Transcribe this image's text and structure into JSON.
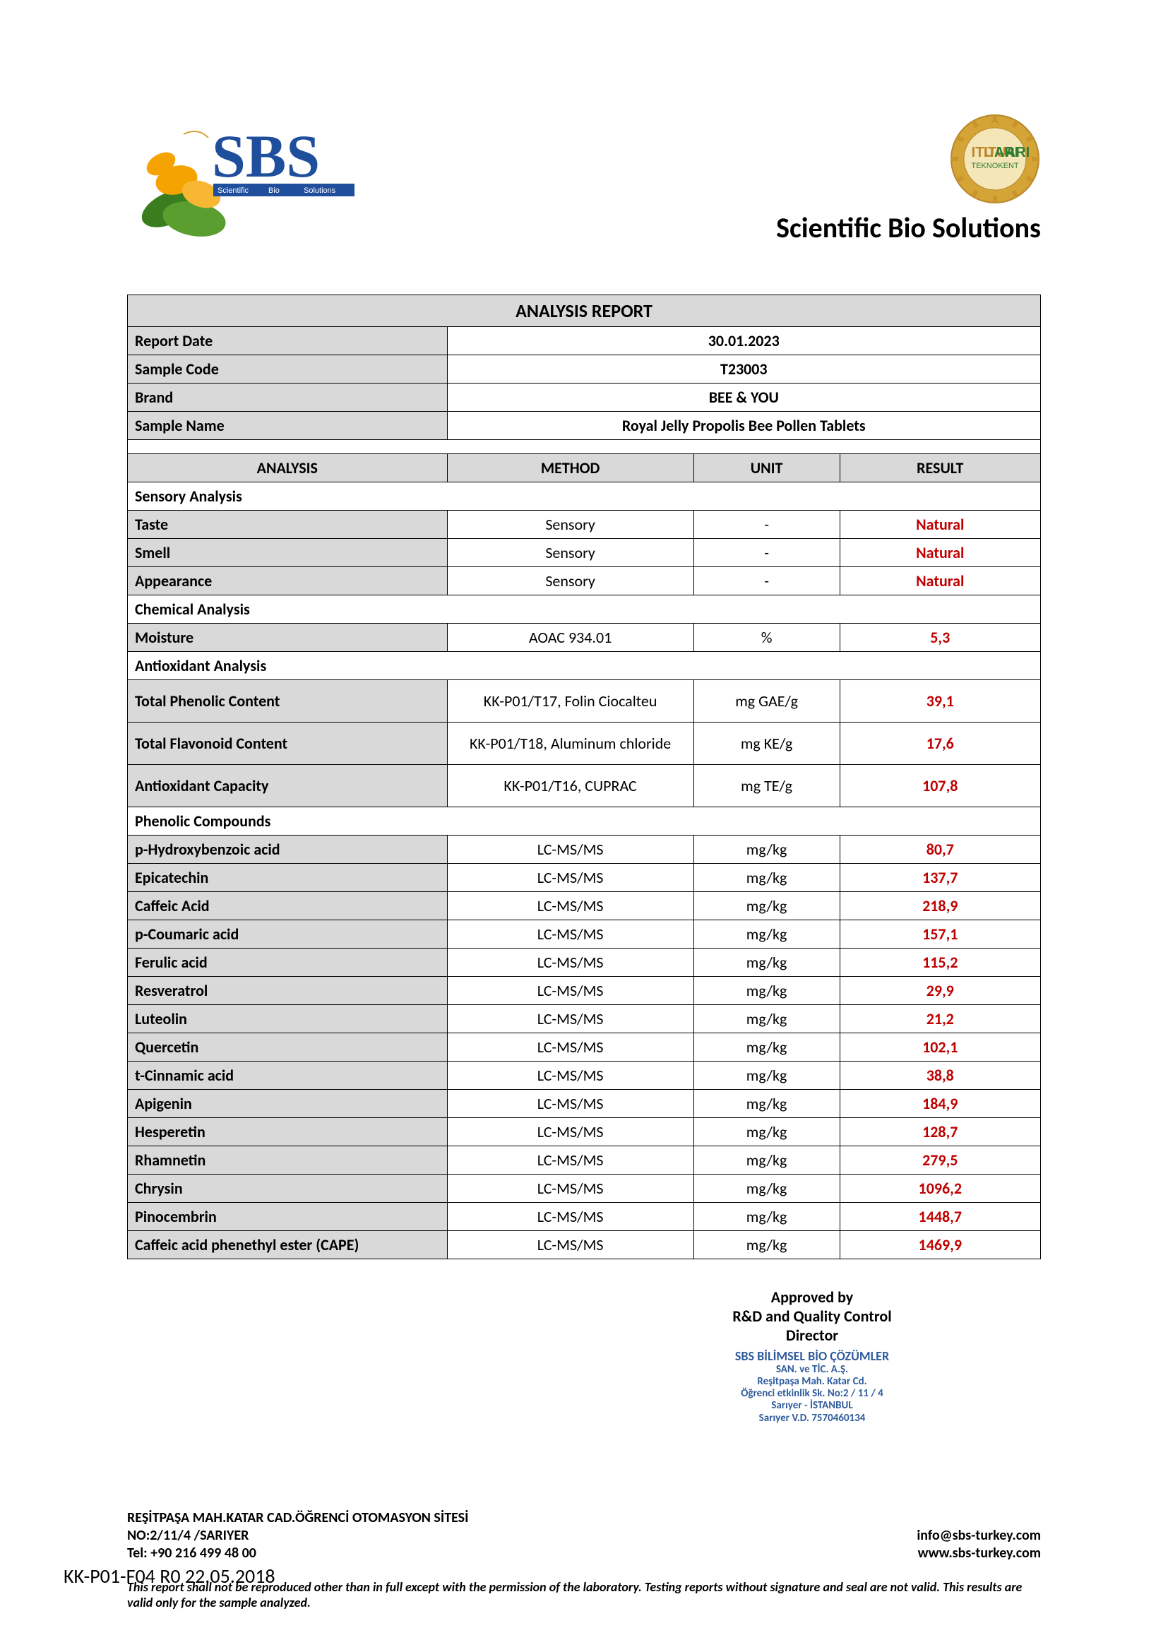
{
  "company_title": "Scientific Bio Solutions",
  "seal_text_top": "ITUARI",
  "seal_text_bottom": "TEKNOKENT",
  "logo_text": "SBS",
  "logo_subtext": "Scientific    Bio    Solutions",
  "report_title": "ANALYSIS REPORT",
  "info": [
    {
      "label": "Report Date",
      "value": "30.01.2023"
    },
    {
      "label": "Sample Code",
      "value": "T23003"
    },
    {
      "label": "Brand",
      "value": "BEE & YOU"
    },
    {
      "label": "Sample Name",
      "value": "Royal Jelly Propolis Bee Pollen Tablets"
    }
  ],
  "columns": {
    "analysis": "ANALYSIS",
    "method": "METHOD",
    "unit": "UNIT",
    "result": "RESULT"
  },
  "sections": [
    {
      "title": "Sensory Analysis",
      "rows": [
        {
          "analysis": "Taste",
          "method": "Sensory",
          "unit": "-",
          "result": "Natural"
        },
        {
          "analysis": "Smell",
          "method": "Sensory",
          "unit": "-",
          "result": "Natural"
        },
        {
          "analysis": "Appearance",
          "method": "Sensory",
          "unit": "-",
          "result": "Natural"
        }
      ]
    },
    {
      "title": "Chemical Analysis",
      "rows": [
        {
          "analysis": "Moisture",
          "method": "AOAC 934.01",
          "unit": "%",
          "result": "5,3"
        }
      ]
    },
    {
      "title": "Antioxidant Analysis",
      "rows": [
        {
          "analysis": "Total Phenolic Content",
          "method": "KK-P01/T17, Folin Ciocalteu",
          "unit": "mg GAE/g",
          "result": "39,1",
          "tall": true
        },
        {
          "analysis": "Total  Flavonoid Content",
          "method": "KK-P01/T18, Aluminum chloride",
          "unit": "mg KE/g",
          "result": "17,6",
          "tall": true
        },
        {
          "analysis": "Antioxidant Capacity",
          "method": "KK-P01/T16, CUPRAC",
          "unit": "mg TE/g",
          "result": "107,8",
          "tall": true
        }
      ]
    },
    {
      "title": "Phenolic Compounds",
      "rows": [
        {
          "analysis": "p-Hydroxybenzoic acid",
          "method": "LC-MS/MS",
          "unit": "mg/kg",
          "result": "80,7"
        },
        {
          "analysis": "Epicatechin",
          "method": "LC-MS/MS",
          "unit": "mg/kg",
          "result": "137,7"
        },
        {
          "analysis": "Caffeic Acid",
          "method": "LC-MS/MS",
          "unit": "mg/kg",
          "result": "218,9"
        },
        {
          "analysis": "p-Coumaric acid",
          "method": "LC-MS/MS",
          "unit": "mg/kg",
          "result": "157,1"
        },
        {
          "analysis": "Ferulic acid",
          "method": "LC-MS/MS",
          "unit": "mg/kg",
          "result": "115,2"
        },
        {
          "analysis": "Resveratrol",
          "method": "LC-MS/MS",
          "unit": "mg/kg",
          "result": "29,9"
        },
        {
          "analysis": "Luteolin",
          "method": "LC-MS/MS",
          "unit": "mg/kg",
          "result": "21,2"
        },
        {
          "analysis": "Quercetin",
          "method": "LC-MS/MS",
          "unit": "mg/kg",
          "result": "102,1"
        },
        {
          "analysis": "t-Cinnamic acid",
          "method": "LC-MS/MS",
          "unit": "mg/kg",
          "result": "38,8"
        },
        {
          "analysis": "Apigenin",
          "method": "LC-MS/MS",
          "unit": "mg/kg",
          "result": "184,9"
        },
        {
          "analysis": "Hesperetin",
          "method": "LC-MS/MS",
          "unit": "mg/kg",
          "result": "128,7"
        },
        {
          "analysis": "Rhamnetin",
          "method": "LC-MS/MS",
          "unit": "mg/kg",
          "result": "279,5"
        },
        {
          "analysis": "Chrysin",
          "method": "LC-MS/MS",
          "unit": "mg/kg",
          "result": "1096,2"
        },
        {
          "analysis": "Pinocembrin",
          "method": "LC-MS/MS",
          "unit": "mg/kg",
          "result": "1448,7"
        },
        {
          "analysis": "Caffeic acid phenethyl ester (CAPE)",
          "method": "LC-MS/MS",
          "unit": "mg/kg",
          "result": "1469,9"
        }
      ]
    }
  ],
  "approval": {
    "line1": "Approved by",
    "line2": "R&D and Quality Control",
    "line3": "Director",
    "stamp1": "SBS BİLİMSEL BİO ÇÖZÜMLER",
    "stamp2": "SAN. ve TİC. A.Ş.",
    "stamp3": "Reşitpaşa Mah. Katar Cd.",
    "stamp4": "Öğrenci etkinlik Sk. No:2 / 11 / 4",
    "stamp5": "Sarıyer - İSTANBUL",
    "stamp6": "Sarıyer V.D. 7570460134"
  },
  "footer": {
    "address1": "REŞİTPAŞA MAH.KATAR CAD.ÖĞRENCİ OTOMASYON SİTESİ",
    "address2": "NO:2/11/4 /SARIYER",
    "tel": "Tel: +90 216 499 48 00",
    "email": "info@sbs-turkey.com",
    "web": "www.sbs-turkey.com"
  },
  "disclaimer": "This report shall not be reproduced other than in full except with the permission of the laboratory. Testing reports without  signature and seal are not valid. This results are valid only for the sample analyzed.",
  "doc_code": "KK-P01-F04 R0 22.05.2018",
  "colors": {
    "header_bg": "#d9d9d9",
    "result_color": "#c00000",
    "stamp_color": "#2e5b9c",
    "logo_blue": "#1f4e9c",
    "logo_green": "#3a7d1f",
    "logo_orange": "#f4a300",
    "seal_gold": "#d4a437",
    "seal_green": "#2e7d32"
  }
}
